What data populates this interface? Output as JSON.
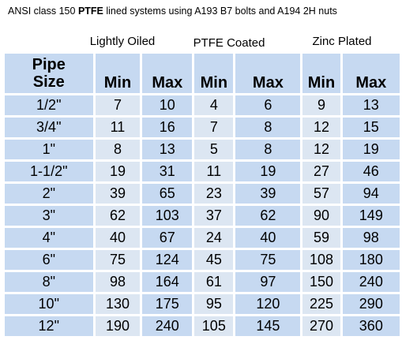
{
  "title": {
    "prefix": "ANSI class 150 ",
    "bold": "PTFE",
    "suffix": " lined systems using A193 B7 bolts and A194 2H nuts"
  },
  "groups": [
    "Lightly Oiled",
    "PTFE Coated",
    "Zinc Plated"
  ],
  "header": {
    "size_line1": "Pipe",
    "size_line2": "Size",
    "min": "Min",
    "max": "Max"
  },
  "rows": [
    {
      "size": "1/2\"",
      "v": [
        "7",
        "10",
        "4",
        "6",
        "9",
        "13"
      ]
    },
    {
      "size": "3/4\"",
      "v": [
        "11",
        "16",
        "7",
        "8",
        "12",
        "15"
      ]
    },
    {
      "size": "1\"",
      "v": [
        "8",
        "13",
        "5",
        "8",
        "12",
        "19"
      ]
    },
    {
      "size": "1-1/2\"",
      "v": [
        "19",
        "31",
        "11",
        "19",
        "27",
        "46"
      ]
    },
    {
      "size": "2\"",
      "v": [
        "39",
        "65",
        "23",
        "39",
        "57",
        "94"
      ]
    },
    {
      "size": "3\"",
      "v": [
        "62",
        "103",
        "37",
        "62",
        "90",
        "149"
      ]
    },
    {
      "size": "4\"",
      "v": [
        "40",
        "67",
        "24",
        "40",
        "59",
        "98"
      ]
    },
    {
      "size": "6\"",
      "v": [
        "75",
        "124",
        "45",
        "75",
        "108",
        "180"
      ]
    },
    {
      "size": "8\"",
      "v": [
        "98",
        "164",
        "61",
        "97",
        "150",
        "240"
      ]
    },
    {
      "size": "10\"",
      "v": [
        "130",
        "175",
        "95",
        "120",
        "225",
        "290"
      ]
    },
    {
      "size": "12\"",
      "v": [
        "190",
        "240",
        "105",
        "145",
        "270",
        "360"
      ]
    }
  ]
}
